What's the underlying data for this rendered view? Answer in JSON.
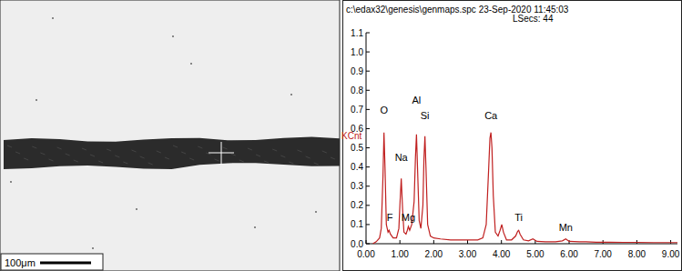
{
  "chart_data": {
    "type": "line",
    "title": "c:\\edax32\\genesis\\genmaps.spc 23-Sep-2020 11:45:03",
    "subtitle": "LSecs: 44",
    "ylabel": "KCnt",
    "color": "#c02020",
    "x": [
      0.2,
      0.3,
      0.4,
      0.45,
      0.5,
      0.53,
      0.56,
      0.6,
      0.65,
      0.68,
      0.72,
      0.8,
      0.9,
      0.97,
      1.0,
      1.04,
      1.08,
      1.12,
      1.18,
      1.22,
      1.25,
      1.29,
      1.35,
      1.42,
      1.46,
      1.49,
      1.52,
      1.57,
      1.62,
      1.68,
      1.71,
      1.74,
      1.77,
      1.82,
      1.9,
      2.0,
      2.2,
      2.5,
      2.8,
      3.1,
      3.3,
      3.45,
      3.55,
      3.62,
      3.66,
      3.69,
      3.72,
      3.76,
      3.82,
      3.9,
      3.96,
      4.01,
      4.06,
      4.15,
      4.3,
      4.42,
      4.48,
      4.51,
      4.55,
      4.65,
      4.8,
      4.93,
      5.05,
      5.3,
      5.6,
      5.8,
      5.9,
      6.0,
      6.3,
      6.5,
      6.8,
      7.2,
      7.6,
      8.0,
      8.5,
      9.0,
      9.2
    ],
    "values": [
      0.0,
      0.01,
      0.03,
      0.08,
      0.35,
      0.58,
      0.4,
      0.1,
      0.06,
      0.07,
      0.05,
      0.03,
      0.03,
      0.08,
      0.2,
      0.34,
      0.18,
      0.06,
      0.05,
      0.07,
      0.09,
      0.07,
      0.1,
      0.22,
      0.45,
      0.57,
      0.4,
      0.12,
      0.08,
      0.2,
      0.44,
      0.56,
      0.4,
      0.1,
      0.04,
      0.03,
      0.025,
      0.02,
      0.02,
      0.02,
      0.02,
      0.03,
      0.1,
      0.38,
      0.55,
      0.58,
      0.5,
      0.25,
      0.06,
      0.04,
      0.07,
      0.1,
      0.06,
      0.02,
      0.02,
      0.04,
      0.065,
      0.07,
      0.05,
      0.02,
      0.015,
      0.025,
      0.012,
      0.01,
      0.01,
      0.015,
      0.025,
      0.012,
      0.01,
      0.01,
      0.008,
      0.008,
      0.007,
      0.007,
      0.006,
      0.006,
      0.006
    ],
    "xlim": [
      0,
      9.2
    ],
    "ylim": [
      0,
      1.1
    ],
    "xticks": [
      {
        "value": 0,
        "label": "0.00"
      },
      {
        "value": 1,
        "label": "1.00"
      },
      {
        "value": 2,
        "label": "2.00"
      },
      {
        "value": 3,
        "label": "3.00"
      },
      {
        "value": 4,
        "label": "4.00"
      },
      {
        "value": 5,
        "label": "5.00"
      },
      {
        "value": 6,
        "label": "6.00"
      },
      {
        "value": 7,
        "label": "7.00"
      },
      {
        "value": 8,
        "label": "8.00"
      },
      {
        "value": 9,
        "label": "9.00"
      }
    ],
    "yticks": [
      {
        "value": 0,
        "label": "0.0"
      },
      0.1,
      0.2,
      0.3,
      0.4,
      0.5,
      0.6,
      0.7,
      0.8,
      0.9,
      {
        "value": 1,
        "label": "1.0"
      },
      1.1
    ],
    "grid": false,
    "annotations": [
      {
        "text": "O",
        "x": 0.53,
        "y": 0.68
      },
      {
        "text": "F",
        "x": 0.7,
        "y": 0.12
      },
      {
        "text": "Na",
        "x": 1.04,
        "y": 0.43
      },
      {
        "text": "Mg",
        "x": 1.25,
        "y": 0.12
      },
      {
        "text": "Al",
        "x": 1.49,
        "y": 0.73
      },
      {
        "text": "Si",
        "x": 1.74,
        "y": 0.65
      },
      {
        "text": "Ca",
        "x": 3.69,
        "y": 0.65
      },
      {
        "text": "Ti",
        "x": 4.51,
        "y": 0.12
      },
      {
        "text": "Mn",
        "x": 5.9,
        "y": 0.065
      }
    ]
  },
  "sem_image": {
    "scale_bar": "100μm"
  }
}
